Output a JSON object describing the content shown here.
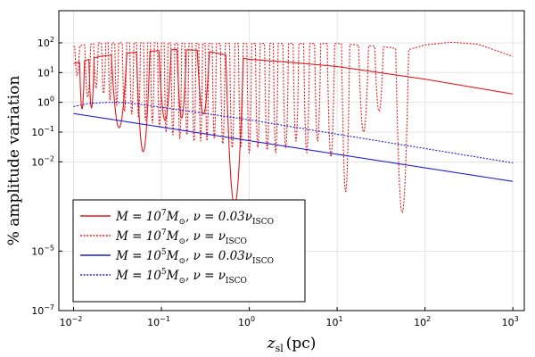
{
  "chart_data": {
    "type": "line",
    "xscale": "log",
    "yscale": "log",
    "xlim": [
      0.0068,
      1350
    ],
    "ylim": [
      1e-07,
      1200
    ],
    "x_ticks": [
      {
        "value": 0.01,
        "base": "10",
        "exp": "−2"
      },
      {
        "value": 0.1,
        "base": "10",
        "exp": "−1"
      },
      {
        "value": 1,
        "base": "10",
        "exp": "0"
      },
      {
        "value": 10,
        "base": "10",
        "exp": "1"
      },
      {
        "value": 100,
        "base": "10",
        "exp": "2"
      },
      {
        "value": 1000,
        "base": "10",
        "exp": "3"
      }
    ],
    "y_ticks": [
      {
        "value": 100,
        "base": "10",
        "exp": "2"
      },
      {
        "value": 10,
        "base": "10",
        "exp": "1"
      },
      {
        "value": 1,
        "base": "10",
        "exp": "0"
      },
      {
        "value": 0.1,
        "base": "10",
        "exp": "−1"
      },
      {
        "value": 0.01,
        "base": "10",
        "exp": "−2"
      },
      {
        "value": 1e-05,
        "base": "10",
        "exp": "−5"
      },
      {
        "value": 1e-07,
        "base": "10",
        "exp": "−7"
      }
    ],
    "xlabel": {
      "main": "z",
      "sub": "sl",
      "unit": "(pc)"
    },
    "ylabel": "% amplitude variation",
    "grid": true,
    "legend_position": "bottom-left",
    "series": [
      {
        "name": "red-solid",
        "legend": {
          "a": "M = 10",
          "sup": "7",
          "b": "M",
          "msub": "⊙",
          "c": ", ν = 0.03ν",
          "nsub": "ISCO"
        },
        "color": "#e31a1c",
        "dash": "solid",
        "envelope": [
          [
            0.01,
            20
          ],
          [
            0.02,
            35
          ],
          [
            0.05,
            48
          ],
          [
            0.15,
            60
          ],
          [
            0.3,
            55
          ],
          [
            1,
            28
          ],
          [
            3,
            22
          ],
          [
            10,
            16
          ],
          [
            100,
            6
          ],
          [
            1000,
            1.9
          ]
        ],
        "minima": [
          0.0125,
          0.016,
          0.033,
          0.062,
          0.11,
          0.17,
          0.3,
          0.68
        ],
        "minima_depth": [
          0.6,
          0.65,
          0.14,
          0.022,
          0.25,
          0.3,
          0.4,
          0.00035
        ]
      },
      {
        "name": "red-dotted",
        "legend": {
          "a": "M = 10",
          "sup": "7",
          "b": "M",
          "msub": "⊙",
          "c": ", ν = ν",
          "nsub": "ISCO"
        },
        "color": "#e31a1c",
        "dash": "dotted",
        "envelope": [
          [
            0.01,
            75
          ],
          [
            0.02,
            100
          ],
          [
            0.1,
            100
          ],
          [
            0.3,
            95
          ],
          [
            1,
            95
          ],
          [
            10,
            95
          ],
          [
            40,
            70
          ],
          [
            60,
            55
          ],
          [
            100,
            85
          ],
          [
            200,
            105
          ],
          [
            400,
            90
          ],
          [
            1000,
            35
          ]
        ],
        "minima": [
          0.011,
          0.0145,
          0.018,
          0.022,
          0.026,
          0.031,
          0.038,
          0.046,
          0.055,
          0.066,
          0.079,
          0.095,
          0.113,
          0.135,
          0.162,
          0.195,
          0.235,
          0.28,
          0.33,
          0.4,
          0.5,
          0.64,
          0.8,
          1.0,
          1.25,
          1.6,
          2.0,
          2.6,
          3.4,
          4.5,
          6.0,
          8.5,
          12.5,
          20,
          30,
          55
        ],
        "minima_depth": [
          8,
          1.5,
          3,
          2,
          1.2,
          0.8,
          0.5,
          0.4,
          0.3,
          0.25,
          0.2,
          0.15,
          0.1,
          0.08,
          0.06,
          0.08,
          0.05,
          0.05,
          0.05,
          0.06,
          0.04,
          0.03,
          0.03,
          0.02,
          0.03,
          0.025,
          0.02,
          0.03,
          0.05,
          0.02,
          0.05,
          0.015,
          0.001,
          0.1,
          0.5,
          0.0002
        ]
      },
      {
        "name": "blue-solid",
        "legend": {
          "a": "M = 10",
          "sup": "5",
          "b": "M",
          "msub": "⊙",
          "c": ", ν = 0.03ν",
          "nsub": "ISCO"
        },
        "color": "#1f1fd9",
        "dash": "solid",
        "points": [
          [
            0.01,
            0.42
          ],
          [
            1000,
            0.0022
          ]
        ]
      },
      {
        "name": "blue-dotted",
        "legend": {
          "a": "M = 10",
          "sup": "5",
          "b": "M",
          "msub": "⊙",
          "c": ", ν = ν",
          "nsub": "ISCO"
        },
        "color": "#1f1fd9",
        "dash": "dotted",
        "points": [
          [
            0.01,
            0.72
          ],
          [
            0.015,
            0.92
          ],
          [
            0.025,
            1.0
          ],
          [
            0.04,
            0.98
          ],
          [
            0.1,
            0.68
          ],
          [
            1,
            0.26
          ],
          [
            10,
            0.085
          ],
          [
            100,
            0.028
          ],
          [
            1000,
            0.0092
          ]
        ]
      }
    ]
  }
}
